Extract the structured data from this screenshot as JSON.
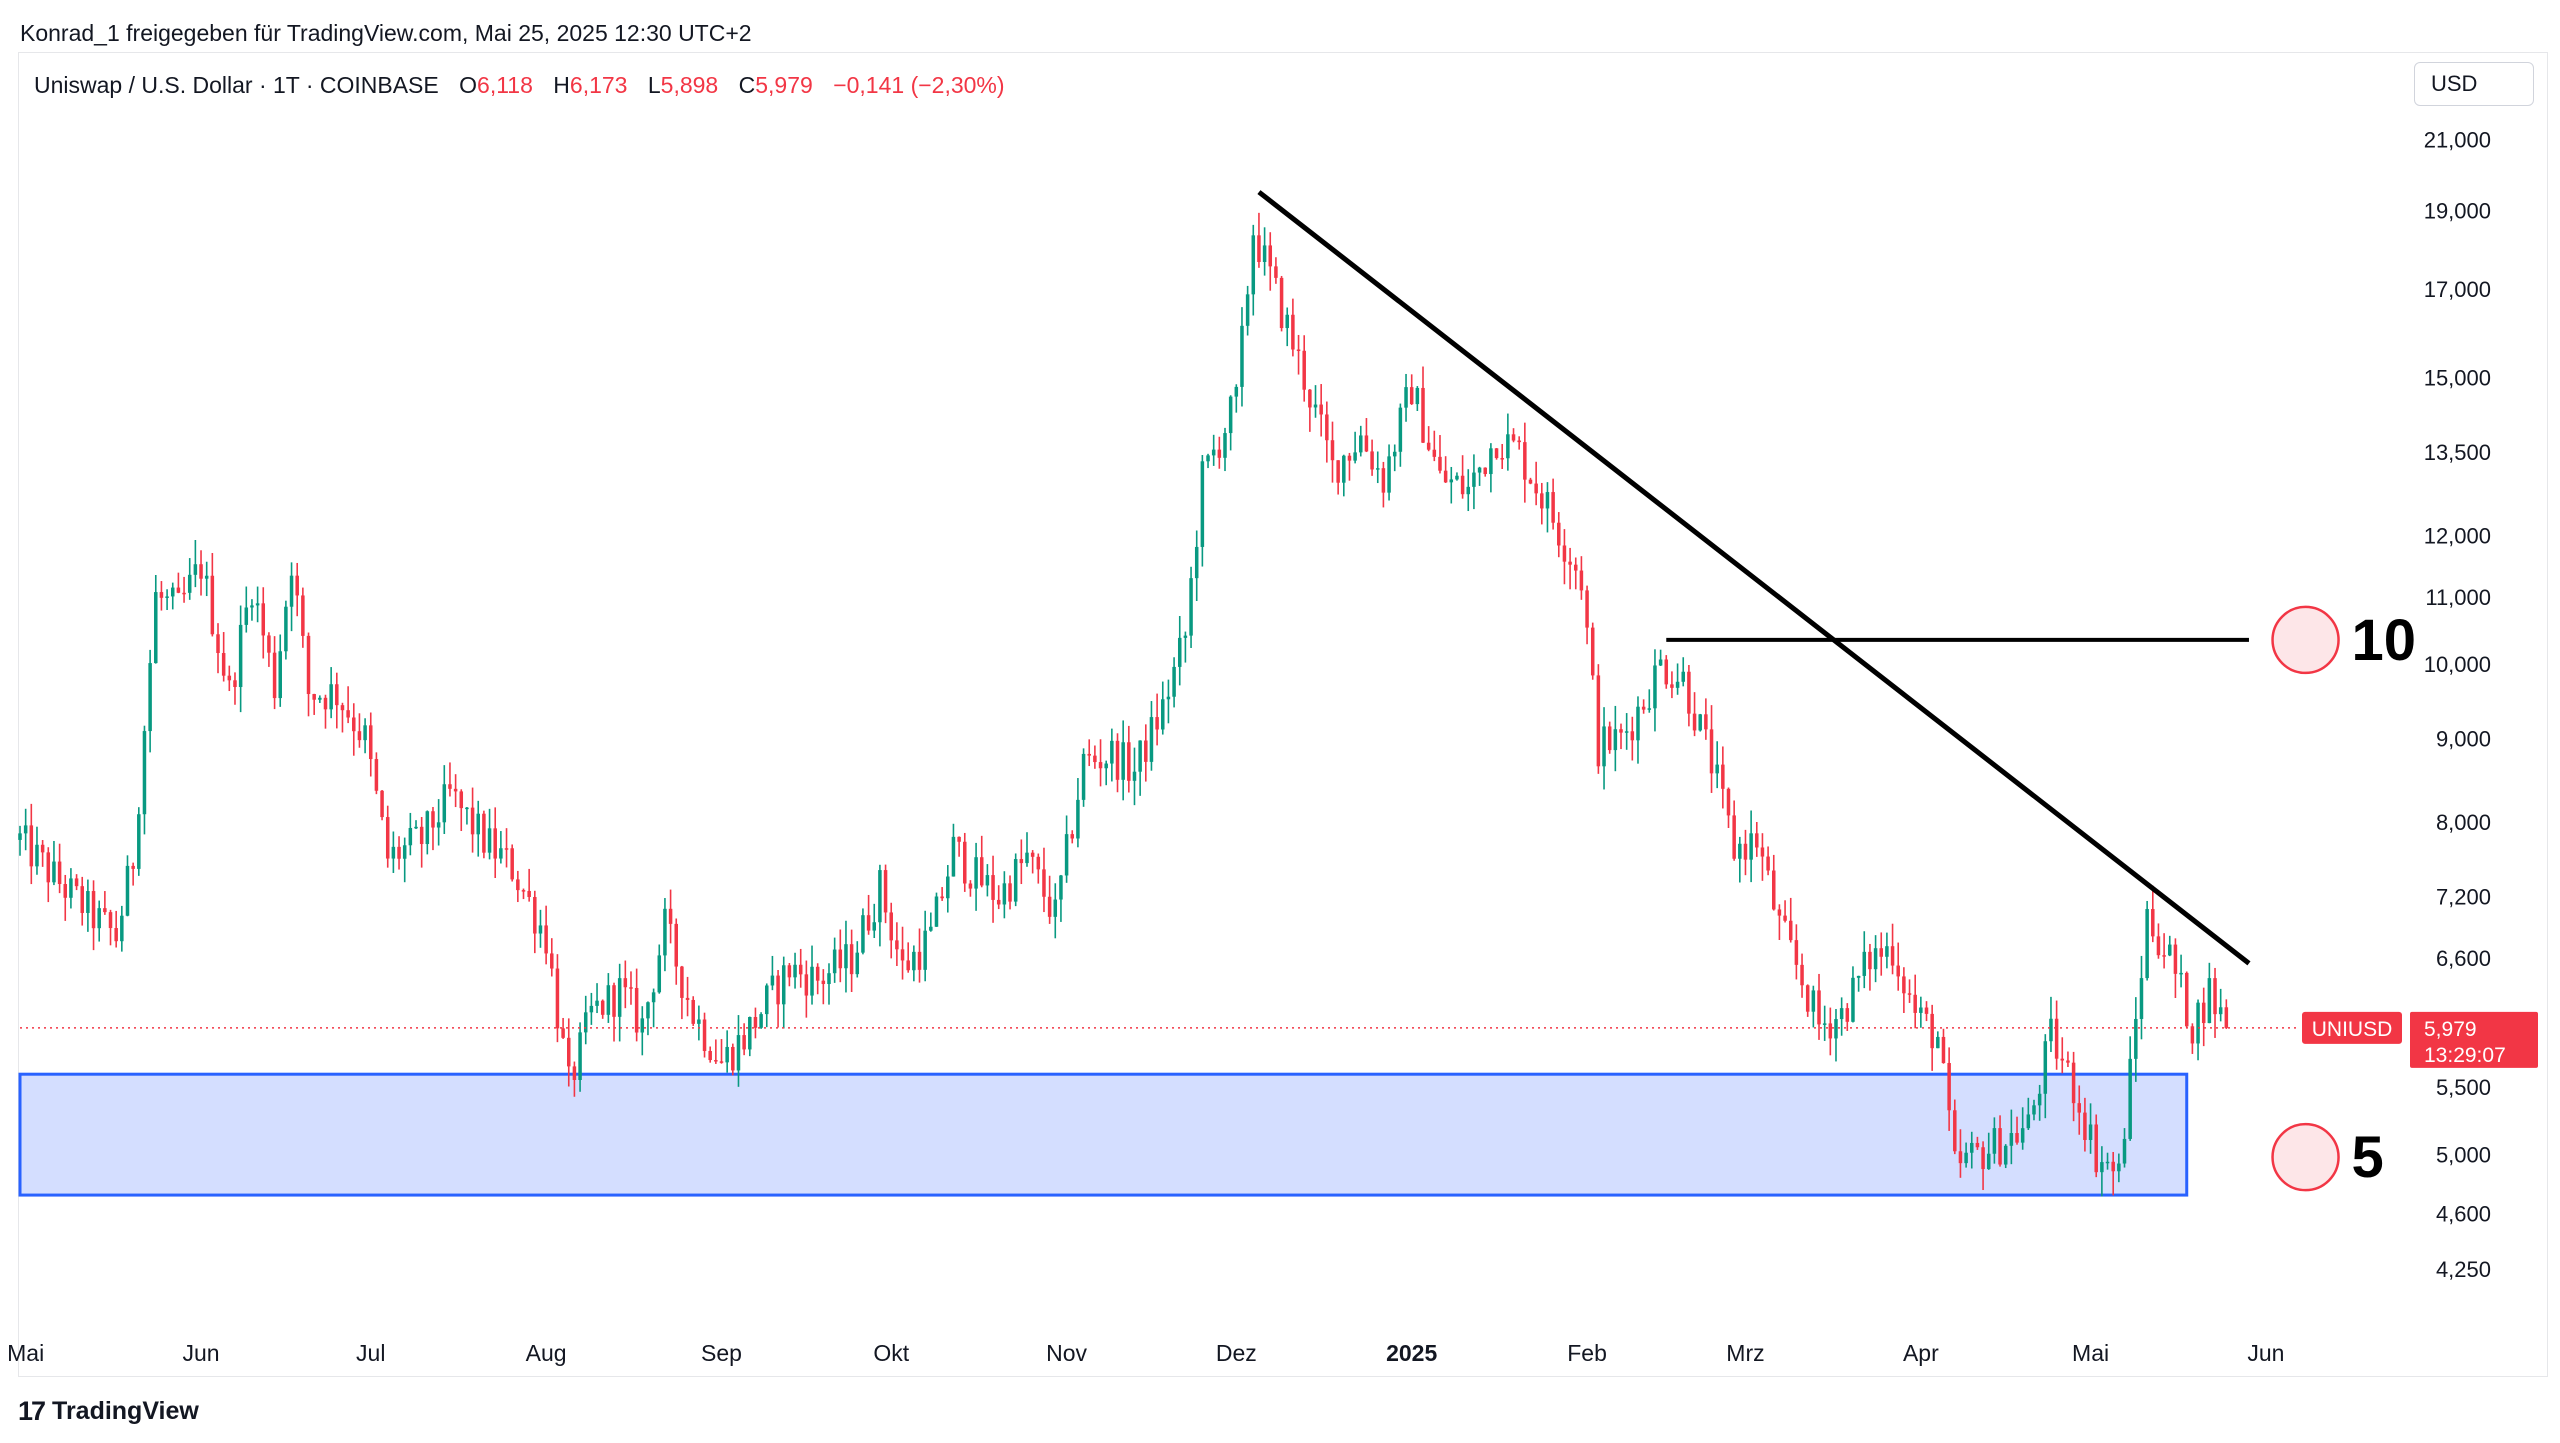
{
  "header": {
    "shared_by": "Konrad_1 freigegeben für TradingView.com, Mai 25, 2025 12:30 UTC+2"
  },
  "legend": {
    "symbol": "Uniswap / U.S. Dollar · 1T · COINBASE",
    "open_label": "O",
    "open": "6,118",
    "high_label": "H",
    "high": "6,173",
    "low_label": "L",
    "low": "5,898",
    "close_label": "C",
    "close": "5,979",
    "change": "−0,141 (−2,30%)"
  },
  "currency": "USD",
  "last_price": {
    "ticker": "UNIUSD",
    "price": "5,979",
    "countdown": "13:29:07"
  },
  "footer": {
    "brand": "TradingView"
  },
  "colors": {
    "up": "#089981",
    "down": "#f23645",
    "zone_fill": "#d4deff",
    "zone_border": "#2962ff",
    "trendline": "#000000",
    "marker": "#f23645"
  },
  "chart_data": {
    "type": "candlestick",
    "y_scale": "log",
    "ylim": [
      3.9,
      21.9
    ],
    "y_ticks": [
      {
        "value": 21.0,
        "label": "21,000"
      },
      {
        "value": 19.0,
        "label": "19,000"
      },
      {
        "value": 17.0,
        "label": "17,000"
      },
      {
        "value": 15.0,
        "label": "15,000"
      },
      {
        "value": 13.5,
        "label": "13,500"
      },
      {
        "value": 12.0,
        "label": "12,000"
      },
      {
        "value": 11.0,
        "label": "11,000"
      },
      {
        "value": 10.0,
        "label": "10,000"
      },
      {
        "value": 9.0,
        "label": "9,000"
      },
      {
        "value": 8.0,
        "label": "8,000"
      },
      {
        "value": 7.2,
        "label": "7,200"
      },
      {
        "value": 6.6,
        "label": "6,600"
      },
      {
        "value": 5.5,
        "label": "5,500"
      },
      {
        "value": 5.0,
        "label": "5,000"
      },
      {
        "value": 4.6,
        "label": "4,600"
      },
      {
        "value": 4.25,
        "label": "4,250"
      }
    ],
    "x_ticks": [
      {
        "date": "2024-05-01",
        "label": "Mai",
        "bold": false
      },
      {
        "date": "2024-06-01",
        "label": "Jun",
        "bold": false
      },
      {
        "date": "2024-07-01",
        "label": "Jul",
        "bold": false
      },
      {
        "date": "2024-08-01",
        "label": "Aug",
        "bold": false
      },
      {
        "date": "2024-09-01",
        "label": "Sep",
        "bold": false
      },
      {
        "date": "2024-10-01",
        "label": "Okt",
        "bold": false
      },
      {
        "date": "2024-11-01",
        "label": "Nov",
        "bold": false
      },
      {
        "date": "2024-12-01",
        "label": "Dez",
        "bold": false
      },
      {
        "date": "2025-01-01",
        "label": "2025",
        "bold": true
      },
      {
        "date": "2025-02-01",
        "label": "Feb",
        "bold": false
      },
      {
        "date": "2025-03-01",
        "label": "Mrz",
        "bold": false
      },
      {
        "date": "2025-04-01",
        "label": "Apr",
        "bold": false
      },
      {
        "date": "2025-05-01",
        "label": "Mai",
        "bold": false
      },
      {
        "date": "2025-06-01",
        "label": "Jun",
        "bold": false
      }
    ],
    "xlim": [
      "2024-04-30",
      "2025-06-30"
    ],
    "candles_start": "2024-04-30",
    "candles_end": "2025-05-25",
    "price_path": [
      [
        "2024-04-30",
        7.8
      ],
      [
        "2024-05-06",
        7.4
      ],
      [
        "2024-05-13",
        7.0
      ],
      [
        "2024-05-17",
        6.8
      ],
      [
        "2024-05-20",
        7.6
      ],
      [
        "2024-05-24",
        11.0
      ],
      [
        "2024-05-28",
        10.8
      ],
      [
        "2024-06-01",
        11.5
      ],
      [
        "2024-06-06",
        9.6
      ],
      [
        "2024-06-10",
        11.2
      ],
      [
        "2024-06-14",
        9.7
      ],
      [
        "2024-06-17",
        11.6
      ],
      [
        "2024-06-20",
        9.6
      ],
      [
        "2024-06-25",
        9.6
      ],
      [
        "2024-06-30",
        9.0
      ],
      [
        "2024-07-04",
        7.6
      ],
      [
        "2024-07-10",
        7.8
      ],
      [
        "2024-07-15",
        8.3
      ],
      [
        "2024-07-21",
        7.8
      ],
      [
        "2024-07-26",
        7.5
      ],
      [
        "2024-08-01",
        6.8
      ],
      [
        "2024-08-05",
        5.5
      ],
      [
        "2024-08-09",
        6.1
      ],
      [
        "2024-08-14",
        6.3
      ],
      [
        "2024-08-18",
        6.0
      ],
      [
        "2024-08-22",
        6.9
      ],
      [
        "2024-08-27",
        6.1
      ],
      [
        "2024-09-01",
        5.7
      ],
      [
        "2024-09-05",
        5.9
      ],
      [
        "2024-09-09",
        6.2
      ],
      [
        "2024-09-13",
        6.5
      ],
      [
        "2024-09-18",
        6.4
      ],
      [
        "2024-09-24",
        6.6
      ],
      [
        "2024-09-29",
        7.3
      ],
      [
        "2024-10-03",
        6.5
      ],
      [
        "2024-10-08",
        6.8
      ],
      [
        "2024-10-12",
        7.7
      ],
      [
        "2024-10-16",
        7.4
      ],
      [
        "2024-10-20",
        7.2
      ],
      [
        "2024-10-25",
        7.6
      ],
      [
        "2024-10-30",
        7.0
      ],
      [
        "2024-11-04",
        8.7
      ],
      [
        "2024-11-09",
        8.8
      ],
      [
        "2024-11-13",
        8.6
      ],
      [
        "2024-11-18",
        9.4
      ],
      [
        "2024-11-22",
        10.4
      ],
      [
        "2024-11-25",
        13.0
      ],
      [
        "2024-12-01",
        14.5
      ],
      [
        "2024-12-04",
        18.5
      ],
      [
        "2024-12-09",
        16.5
      ],
      [
        "2024-12-13",
        15.0
      ],
      [
        "2024-12-18",
        13.2
      ],
      [
        "2024-12-23",
        13.8
      ],
      [
        "2024-12-27",
        13.0
      ],
      [
        "2025-01-01",
        14.8
      ],
      [
        "2025-01-06",
        13.0
      ],
      [
        "2025-01-11",
        12.8
      ],
      [
        "2025-01-16",
        13.8
      ],
      [
        "2025-01-20",
        13.5
      ],
      [
        "2025-01-25",
        12.5
      ],
      [
        "2025-01-31",
        11.3
      ],
      [
        "2025-02-03",
        8.9
      ],
      [
        "2025-02-07",
        9.0
      ],
      [
        "2025-02-11",
        9.5
      ],
      [
        "2025-02-14",
        10.0
      ],
      [
        "2025-02-18",
        9.8
      ],
      [
        "2025-02-23",
        8.7
      ],
      [
        "2025-02-27",
        7.7
      ],
      [
        "2025-03-03",
        7.8
      ],
      [
        "2025-03-07",
        6.9
      ],
      [
        "2025-03-11",
        6.4
      ],
      [
        "2025-03-14",
        6.0
      ],
      [
        "2025-03-18",
        6.1
      ],
      [
        "2025-03-23",
        6.6
      ],
      [
        "2025-03-27",
        6.7
      ],
      [
        "2025-03-31",
        6.1
      ],
      [
        "2025-04-04",
        5.9
      ],
      [
        "2025-04-07",
        4.9
      ],
      [
        "2025-04-11",
        5.0
      ],
      [
        "2025-04-16",
        5.1
      ],
      [
        "2025-04-20",
        5.2
      ],
      [
        "2025-04-24",
        5.9
      ],
      [
        "2025-04-28",
        5.5
      ],
      [
        "2025-05-02",
        5.0
      ],
      [
        "2025-05-06",
        4.85
      ],
      [
        "2025-05-08",
        5.6
      ],
      [
        "2025-05-11",
        7.0
      ],
      [
        "2025-05-15",
        6.6
      ],
      [
        "2025-05-19",
        6.0
      ],
      [
        "2025-05-22",
        6.3
      ],
      [
        "2025-05-25",
        5.98
      ]
    ],
    "drawings": {
      "trendline": {
        "from": {
          "date": "2024-12-05",
          "value": 19.5
        },
        "to": {
          "date": "2025-05-29",
          "value": 6.55
        }
      },
      "resistance_line": {
        "from": {
          "date": "2025-02-15",
          "value": 10.35
        },
        "to": {
          "date": "2025-05-29",
          "value": 10.35
        }
      },
      "support_zone": {
        "from_date": "2024-04-30",
        "to_date": "2025-05-18",
        "low": 4.72,
        "high": 5.6
      },
      "markers": [
        {
          "date": "2025-06-08",
          "value": 10.35,
          "label": "10"
        },
        {
          "date": "2025-06-08",
          "value": 4.98,
          "label": "5"
        }
      ]
    }
  }
}
